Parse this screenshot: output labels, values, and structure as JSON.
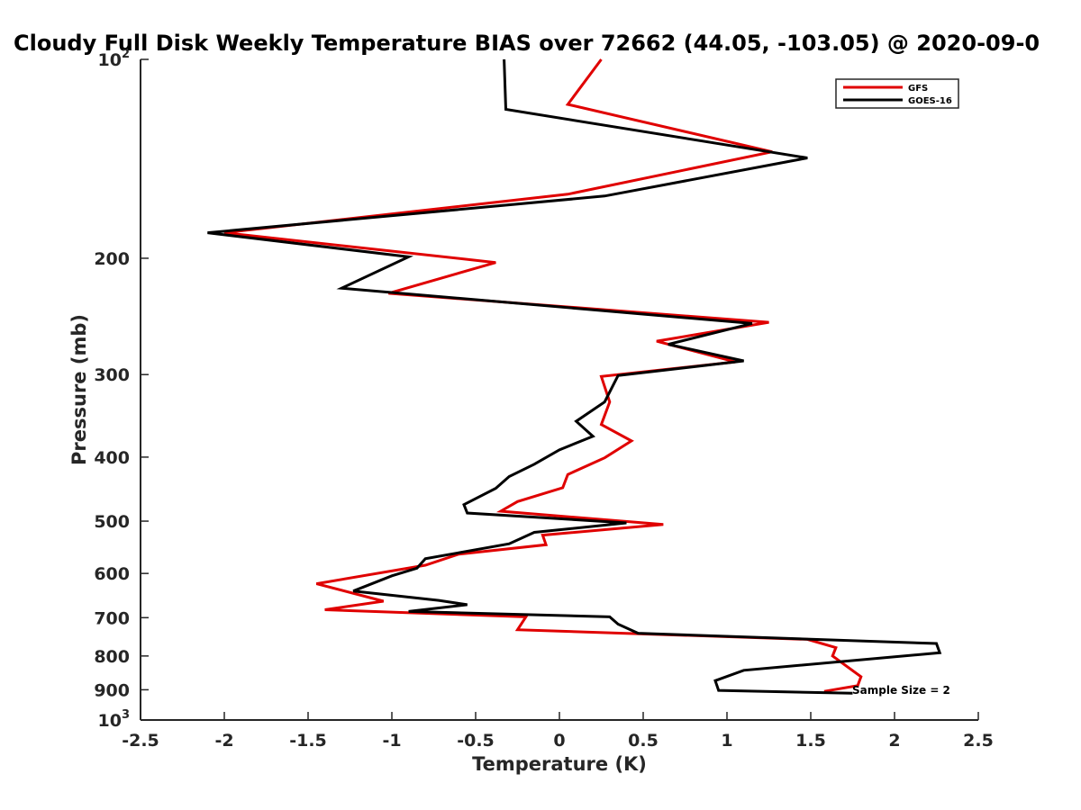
{
  "chart_data": {
    "type": "line",
    "title": "Cloudy Full Disk Weekly Temperature BIAS over 72662 (44.05, -103.05) @ 2020-09-0",
    "xlabel": "Temperature (K)",
    "ylabel": "Pressure (mb)",
    "xlim": [
      -2.5,
      2.5
    ],
    "ylim": [
      100,
      1000
    ],
    "yscale": "log",
    "y_reversed": true,
    "xticks": [
      -2.5,
      -2,
      -1.5,
      -1,
      -0.5,
      0,
      0.5,
      1,
      1.5,
      2,
      2.5
    ],
    "xtick_labels": [
      "-2.5",
      "-2",
      "-1.5",
      "-1",
      "-0.5",
      "0",
      "0.5",
      "1",
      "1.5",
      "2",
      "2.5"
    ],
    "yticks": [
      {
        "value": 100,
        "base": "10",
        "exp": "2"
      },
      {
        "value": 200,
        "label": "200"
      },
      {
        "value": 300,
        "label": "300"
      },
      {
        "value": 400,
        "label": "400"
      },
      {
        "value": 500,
        "label": "500"
      },
      {
        "value": 600,
        "label": "600"
      },
      {
        "value": 700,
        "label": "700"
      },
      {
        "value": 800,
        "label": "800"
      },
      {
        "value": 900,
        "label": "900"
      },
      {
        "value": 1000,
        "base": "10",
        "exp": "3"
      }
    ],
    "legend_position": "top-right",
    "series": [
      {
        "name": "GFS",
        "color": "#e00000",
        "points": [
          [
            0.25,
            100
          ],
          [
            0.05,
            117
          ],
          [
            1.27,
            138
          ],
          [
            0.05,
            160
          ],
          [
            -2.0,
            183
          ],
          [
            -0.38,
            203
          ],
          [
            -1.02,
            226
          ],
          [
            1.25,
            250
          ],
          [
            0.58,
            267
          ],
          [
            1.05,
            287
          ],
          [
            0.25,
            302
          ],
          [
            0.3,
            330
          ],
          [
            0.25,
            357
          ],
          [
            0.43,
            378
          ],
          [
            0.27,
            401
          ],
          [
            0.05,
            425
          ],
          [
            0.02,
            445
          ],
          [
            -0.25,
            467
          ],
          [
            -0.35,
            483
          ],
          [
            0.62,
            506
          ],
          [
            -0.1,
            525
          ],
          [
            -0.08,
            543
          ],
          [
            -0.6,
            561
          ],
          [
            -0.8,
            583
          ],
          [
            -1.45,
            622
          ],
          [
            -1.05,
            661
          ],
          [
            -1.4,
            681
          ],
          [
            -0.2,
            698
          ],
          [
            -0.25,
            730
          ],
          [
            1.48,
            755
          ],
          [
            1.65,
            777
          ],
          [
            1.63,
            800
          ],
          [
            1.8,
            860
          ],
          [
            1.78,
            887
          ],
          [
            1.58,
            905
          ]
        ]
      },
      {
        "name": "GOES-16",
        "color": "#000000",
        "points": [
          [
            -0.33,
            100
          ],
          [
            -0.32,
            119
          ],
          [
            1.48,
            141
          ],
          [
            0.27,
            161
          ],
          [
            -2.1,
            183
          ],
          [
            -0.9,
            199
          ],
          [
            -1.3,
            222
          ],
          [
            1.15,
            251
          ],
          [
            0.65,
            270
          ],
          [
            1.1,
            286
          ],
          [
            0.35,
            301
          ],
          [
            0.27,
            330
          ],
          [
            0.1,
            353
          ],
          [
            0.2,
            372
          ],
          [
            0.0,
            390
          ],
          [
            -0.15,
            410
          ],
          [
            -0.3,
            428
          ],
          [
            -0.38,
            446
          ],
          [
            -0.57,
            472
          ],
          [
            -0.55,
            486
          ],
          [
            0.4,
            503
          ],
          [
            -0.15,
            520
          ],
          [
            -0.3,
            541
          ],
          [
            -0.8,
            570
          ],
          [
            -0.85,
            589
          ],
          [
            -1.0,
            605
          ],
          [
            -1.23,
            638
          ],
          [
            -0.72,
            659
          ],
          [
            -0.55,
            669
          ],
          [
            -0.9,
            685
          ],
          [
            0.3,
            698
          ],
          [
            0.35,
            716
          ],
          [
            0.47,
            739
          ],
          [
            2.25,
            766
          ],
          [
            2.27,
            791
          ],
          [
            1.1,
            841
          ],
          [
            0.93,
            872
          ],
          [
            0.95,
            902
          ],
          [
            1.75,
            911
          ]
        ]
      }
    ],
    "annotation": "Sample Size = 2"
  }
}
